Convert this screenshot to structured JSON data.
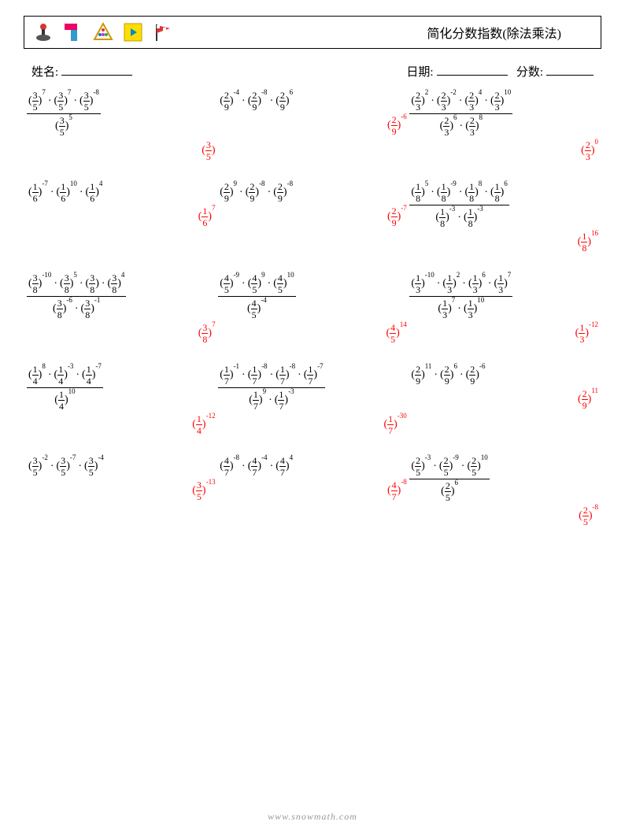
{
  "header": {
    "title": "简化分数指数(除法乘法)",
    "name_label": "姓名:",
    "date_label": "日期:",
    "score_label": "分数:"
  },
  "watermark": "www.snowmath.com",
  "colors": {
    "answer": "#ff0000",
    "text": "#000000",
    "watermark": "#999999",
    "background": "#ffffff"
  },
  "fonts": {
    "body": "Times New Roman",
    "cjk": "SimSun",
    "title_size": 16,
    "body_size": 14
  },
  "problems": [
    [
      {
        "type": "div",
        "num": [
          {
            "b": "3/5",
            "e": "7"
          },
          {
            "b": "3/5",
            "e": "7"
          },
          {
            "b": "3/5",
            "e": "-8"
          }
        ],
        "den": [
          {
            "b": "3/5",
            "e": "5"
          }
        ],
        "ans": {
          "b": "3/5",
          "e": ""
        }
      },
      {
        "type": "mul",
        "terms": [
          {
            "b": "2/9",
            "e": "-4"
          },
          {
            "b": "2/9",
            "e": "-8"
          },
          {
            "b": "2/9",
            "e": "6"
          }
        ],
        "ans": {
          "b": "2/9",
          "e": "-6"
        }
      },
      {
        "type": "div",
        "num": [
          {
            "b": "2/3",
            "e": "2"
          },
          {
            "b": "2/3",
            "e": "-2"
          },
          {
            "b": "2/3",
            "e": "4"
          },
          {
            "b": "2/3",
            "e": "10"
          }
        ],
        "den": [
          {
            "b": "2/3",
            "e": "6"
          },
          {
            "b": "2/3",
            "e": "8"
          }
        ],
        "ans": {
          "b": "2/3",
          "e": "0"
        }
      }
    ],
    [
      {
        "type": "mul",
        "terms": [
          {
            "b": "1/6",
            "e": "-7"
          },
          {
            "b": "1/6",
            "e": "10"
          },
          {
            "b": "1/6",
            "e": "4"
          }
        ],
        "ans": {
          "b": "1/6",
          "e": "7"
        }
      },
      {
        "type": "mul",
        "terms": [
          {
            "b": "2/9",
            "e": "9"
          },
          {
            "b": "2/9",
            "e": "-8"
          },
          {
            "b": "2/9",
            "e": "-8"
          }
        ],
        "ans": {
          "b": "2/9",
          "e": "-7"
        }
      },
      {
        "type": "div",
        "num": [
          {
            "b": "1/8",
            "e": "5"
          },
          {
            "b": "1/8",
            "e": "-9"
          },
          {
            "b": "1/8",
            "e": "8"
          },
          {
            "b": "1/8",
            "e": "6"
          }
        ],
        "den": [
          {
            "b": "1/8",
            "e": "-3"
          },
          {
            "b": "1/8",
            "e": "-3"
          }
        ],
        "ans": {
          "b": "1/8",
          "e": "16"
        }
      }
    ],
    [
      {
        "type": "div",
        "num": [
          {
            "b": "3/8",
            "e": "-10"
          },
          {
            "b": "3/8",
            "e": "5"
          },
          {
            "b": "3/8",
            "e": ""
          },
          {
            "b": "3/8",
            "e": "4"
          }
        ],
        "den": [
          {
            "b": "3/8",
            "e": "-6"
          },
          {
            "b": "3/8",
            "e": "-1"
          }
        ],
        "ans": {
          "b": "3/8",
          "e": "7"
        }
      },
      {
        "type": "div",
        "num": [
          {
            "b": "4/5",
            "e": "-9"
          },
          {
            "b": "4/5",
            "e": "9"
          },
          {
            "b": "4/5",
            "e": "10"
          }
        ],
        "den": [
          {
            "b": "4/5",
            "e": "-4"
          }
        ],
        "ans": {
          "b": "4/5",
          "e": "14"
        }
      },
      {
        "type": "div",
        "num": [
          {
            "b": "1/3",
            "e": "-10"
          },
          {
            "b": "1/3",
            "e": "2"
          },
          {
            "b": "1/3",
            "e": "6"
          },
          {
            "b": "1/3",
            "e": "7"
          }
        ],
        "den": [
          {
            "b": "1/3",
            "e": "7"
          },
          {
            "b": "1/3",
            "e": "10"
          }
        ],
        "ans": {
          "b": "1/3",
          "e": "-12"
        }
      }
    ],
    [
      {
        "type": "div",
        "num": [
          {
            "b": "1/4",
            "e": "8"
          },
          {
            "b": "1/4",
            "e": "-3"
          },
          {
            "b": "1/4",
            "e": "-7"
          }
        ],
        "den": [
          {
            "b": "1/4",
            "e": "10"
          }
        ],
        "ans": {
          "b": "1/4",
          "e": "-12"
        }
      },
      {
        "type": "div",
        "num": [
          {
            "b": "1/7",
            "e": "-1"
          },
          {
            "b": "1/7",
            "e": "-8"
          },
          {
            "b": "1/7",
            "e": "-8"
          },
          {
            "b": "1/7",
            "e": "-7"
          }
        ],
        "den": [
          {
            "b": "1/7",
            "e": "9"
          },
          {
            "b": "1/7",
            "e": "-3"
          }
        ],
        "ans": {
          "b": "1/7",
          "e": "-30"
        }
      },
      {
        "type": "mul",
        "terms": [
          {
            "b": "2/9",
            "e": "11"
          },
          {
            "b": "2/9",
            "e": "6"
          },
          {
            "b": "2/9",
            "e": "-6"
          }
        ],
        "ans": {
          "b": "2/9",
          "e": "11"
        }
      }
    ],
    [
      {
        "type": "mul",
        "terms": [
          {
            "b": "3/5",
            "e": "-2"
          },
          {
            "b": "3/5",
            "e": "-7"
          },
          {
            "b": "3/5",
            "e": "-4"
          }
        ],
        "ans": {
          "b": "3/5",
          "e": "-13"
        }
      },
      {
        "type": "mul",
        "terms": [
          {
            "b": "4/7",
            "e": "-8"
          },
          {
            "b": "4/7",
            "e": "-4"
          },
          {
            "b": "4/7",
            "e": "4"
          }
        ],
        "ans": {
          "b": "4/7",
          "e": "-8"
        }
      },
      {
        "type": "div",
        "num": [
          {
            "b": "2/5",
            "e": "-3"
          },
          {
            "b": "2/5",
            "e": "-9"
          },
          {
            "b": "2/5",
            "e": "10"
          }
        ],
        "den": [
          {
            "b": "2/5",
            "e": "6"
          }
        ],
        "ans": {
          "b": "2/5",
          "e": "-8"
        }
      }
    ]
  ]
}
